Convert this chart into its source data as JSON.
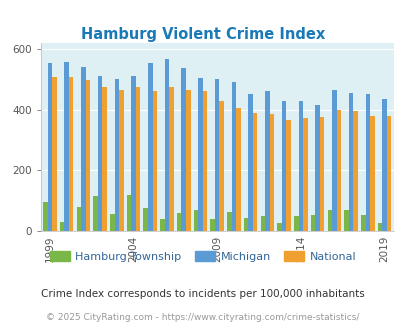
{
  "title": "Hamburg Violent Crime Index",
  "hamburg": [
    95,
    30,
    80,
    115,
    55,
    120,
    75,
    38,
    60,
    68,
    38,
    63,
    43,
    50,
    25,
    48,
    53,
    70,
    70,
    53,
    25
  ],
  "michigan": [
    555,
    557,
    540,
    510,
    500,
    510,
    553,
    568,
    537,
    503,
    500,
    490,
    450,
    460,
    430,
    430,
    415,
    465,
    455,
    450,
    435
  ],
  "national": [
    507,
    507,
    497,
    474,
    465,
    474,
    463,
    473,
    465,
    460,
    430,
    405,
    390,
    385,
    365,
    372,
    375,
    400,
    395,
    380,
    378
  ],
  "hamburg_color": "#7ab648",
  "michigan_color": "#5b9bd5",
  "national_color": "#f0a030",
  "bg_color": "#dff0f5",
  "title_color": "#1a7ab8",
  "footer1": "Crime Index corresponds to incidents per 100,000 inhabitants",
  "footer2": "© 2025 CityRating.com - https://www.cityrating.com/crime-statistics/",
  "ylim": [
    0,
    620
  ],
  "bar_width": 0.27
}
